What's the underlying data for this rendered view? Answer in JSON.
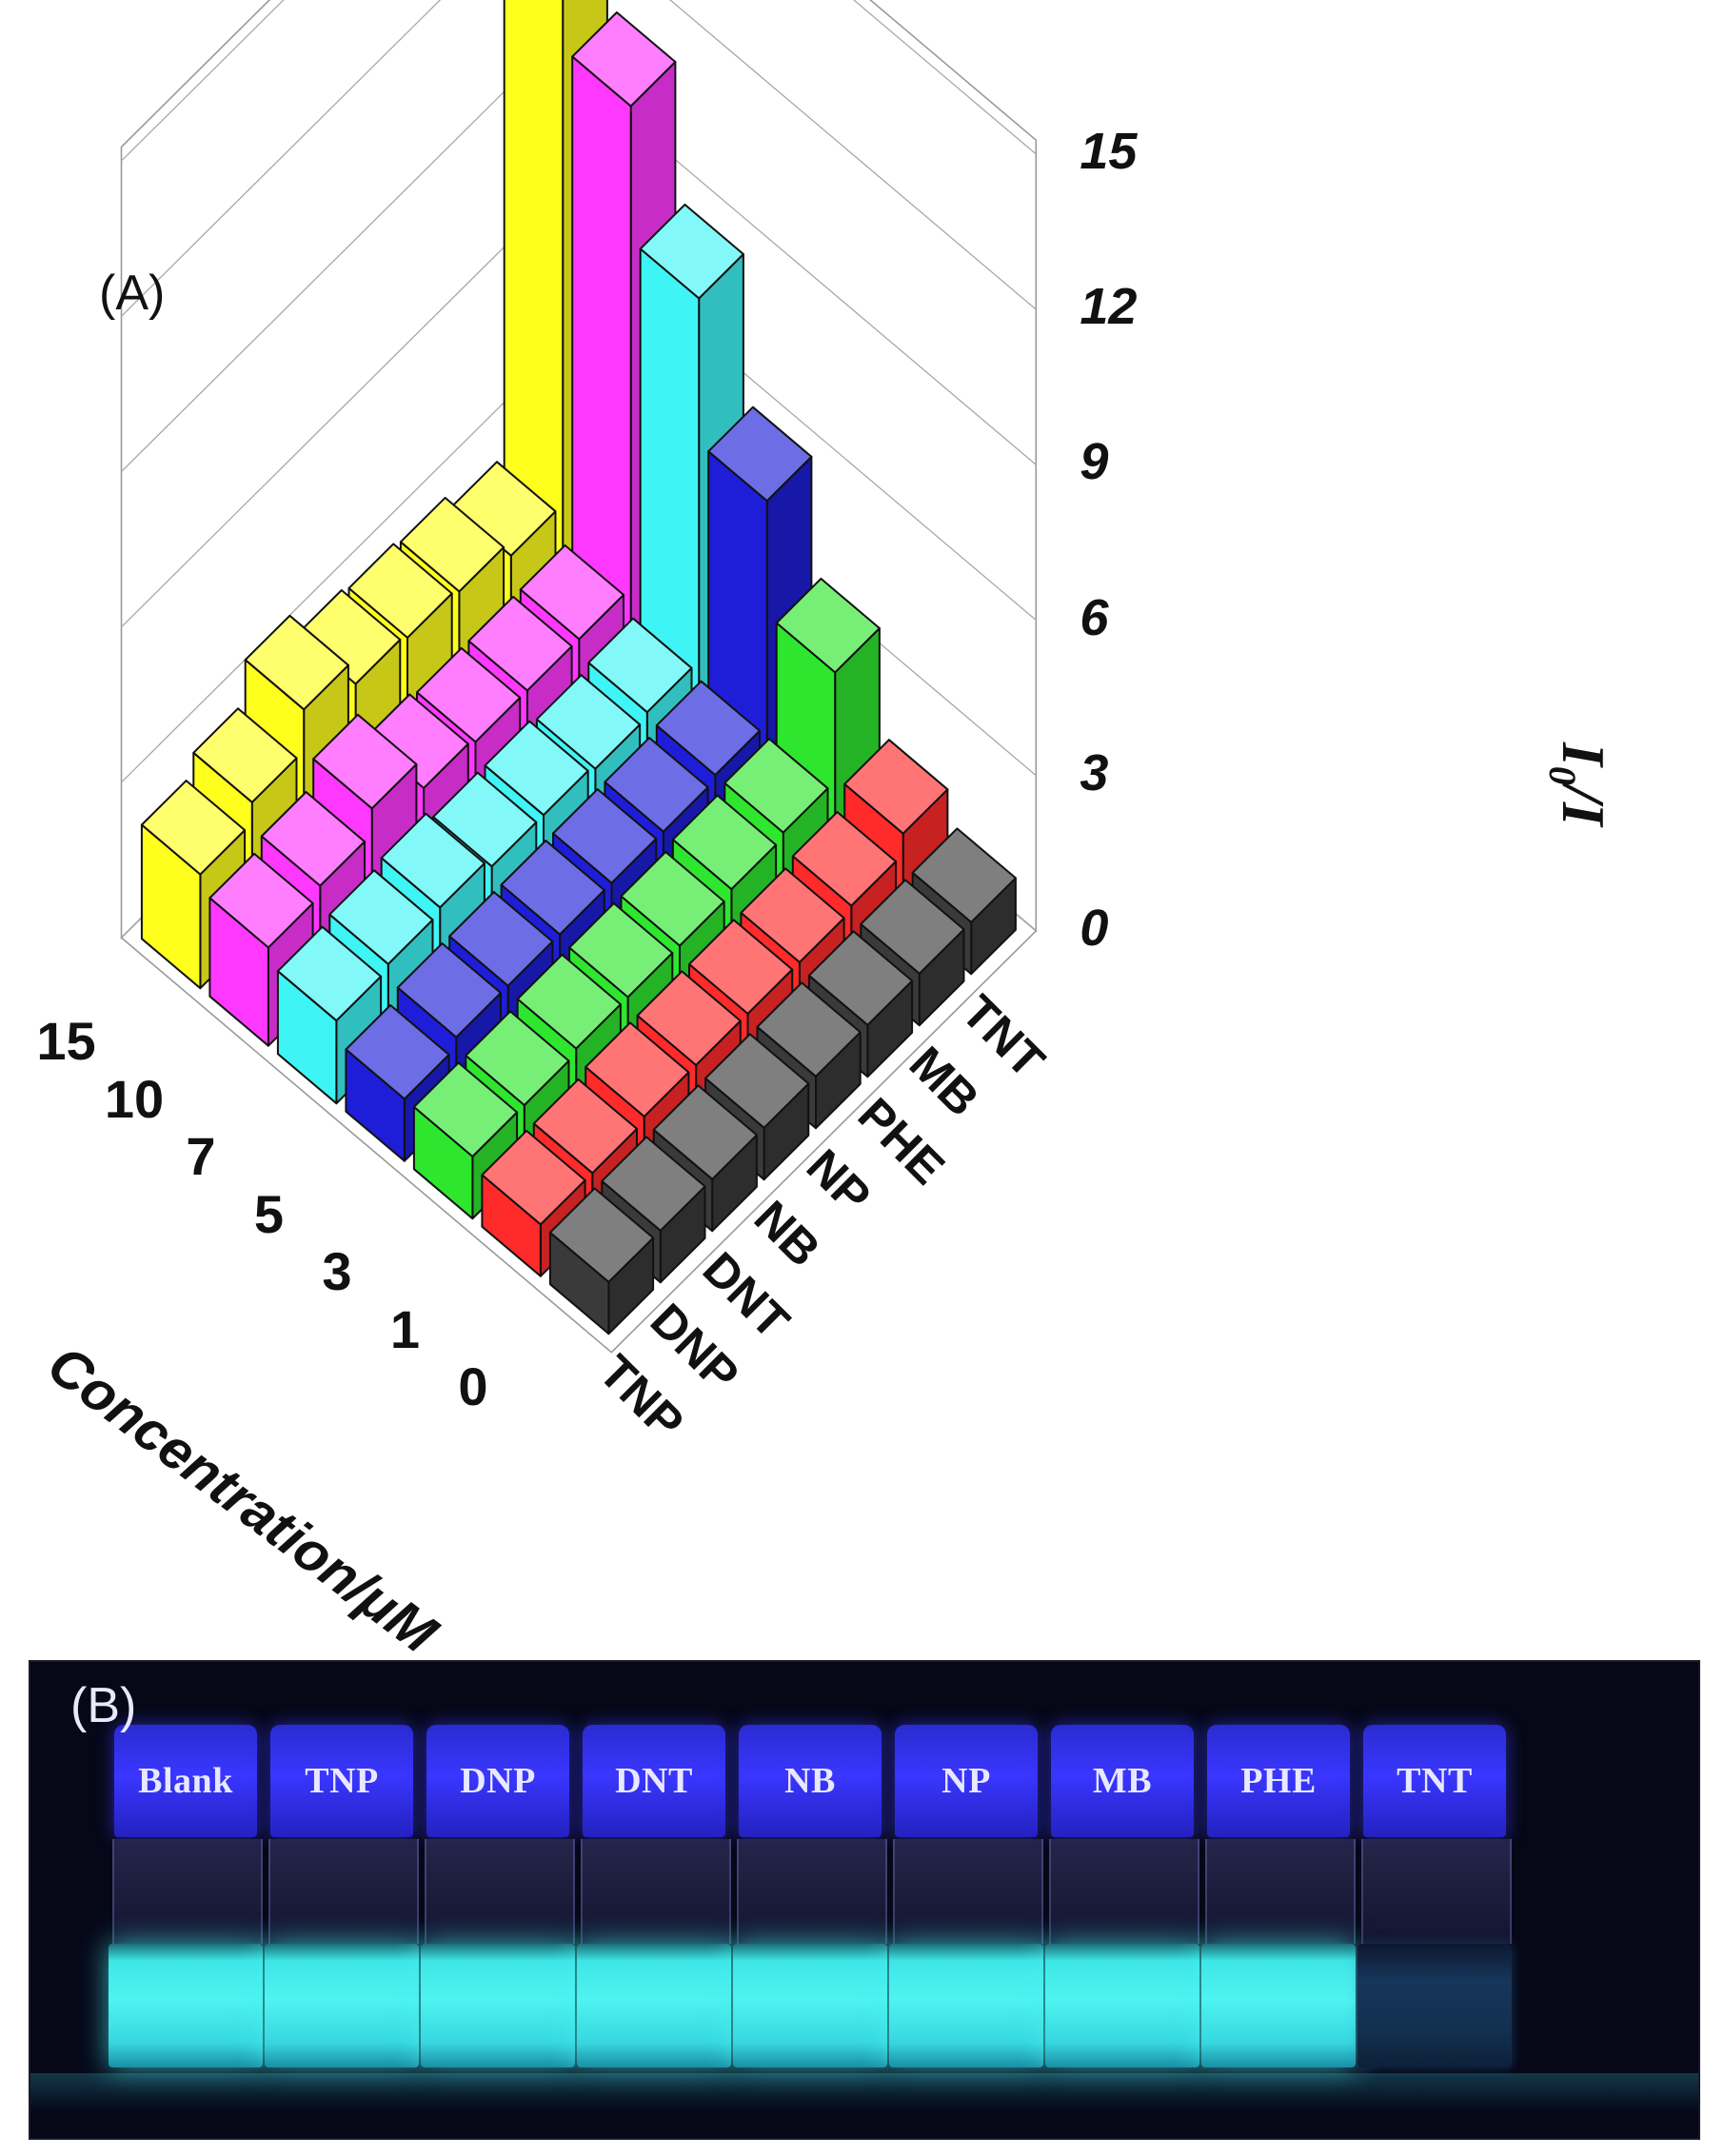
{
  "figure": {
    "panel_a_label": "(A)",
    "panel_b_label": "(B)"
  },
  "chart_data": {
    "type": "bar3d",
    "zlabel": "I0/I",
    "zlabel_main": "I",
    "zlabel_sub": "0",
    "zlabel_tail": "/I",
    "xlabel": "Concentration/μM",
    "zlim": [
      0,
      15
    ],
    "zticks": [
      "0",
      "3",
      "6",
      "9",
      "12",
      "15"
    ],
    "concentration_ticks": [
      "0",
      "1",
      "3",
      "5",
      "7",
      "10",
      "15"
    ],
    "analytes": [
      "TNP",
      "DNP",
      "DNT",
      "NB",
      "NP",
      "PHE",
      "MB",
      "TNT"
    ],
    "colors": {
      "0": "#3a3a3a",
      "1": "#ff2a2a",
      "3": "#2ee62e",
      "5": "#1e1ed8",
      "7": "#3ff4f4",
      "10": "#ff38ff",
      "15": "#ffff1e"
    },
    "series": [
      {
        "concentration": "0",
        "values": [
          1.0,
          1.0,
          1.0,
          1.0,
          1.0,
          1.0,
          1.0,
          1.0
        ]
      },
      {
        "concentration": "1",
        "values": [
          1.0,
          1.0,
          1.1,
          1.1,
          1.1,
          1.1,
          1.2,
          1.6
        ]
      },
      {
        "concentration": "3",
        "values": [
          1.2,
          1.2,
          1.3,
          1.3,
          1.3,
          1.4,
          1.5,
          3.6
        ]
      },
      {
        "concentration": "5",
        "values": [
          1.2,
          1.4,
          1.4,
          1.4,
          1.4,
          1.4,
          1.5,
          5.8
        ]
      },
      {
        "concentration": "7",
        "values": [
          1.6,
          1.7,
          1.8,
          1.6,
          1.6,
          1.5,
          1.6,
          8.6
        ]
      },
      {
        "concentration": "10",
        "values": [
          1.9,
          2.1,
          2.6,
          2.0,
          1.9,
          1.9,
          1.9,
          11.2
        ]
      },
      {
        "concentration": "15",
        "values": [
          2.2,
          2.6,
          3.4,
          2.9,
          2.8,
          2.7,
          2.4,
          16.5
        ]
      }
    ],
    "grid": true
  },
  "vials": [
    {
      "label": "Blank",
      "state": "bright"
    },
    {
      "label": "TNP",
      "state": "bright"
    },
    {
      "label": "DNP",
      "state": "bright"
    },
    {
      "label": "DNT",
      "state": "bright"
    },
    {
      "label": "NB",
      "state": "bright"
    },
    {
      "label": "NP",
      "state": "bright"
    },
    {
      "label": "MB",
      "state": "bright"
    },
    {
      "label": "PHE",
      "state": "bright"
    },
    {
      "label": "TNT",
      "state": "quenched"
    }
  ]
}
